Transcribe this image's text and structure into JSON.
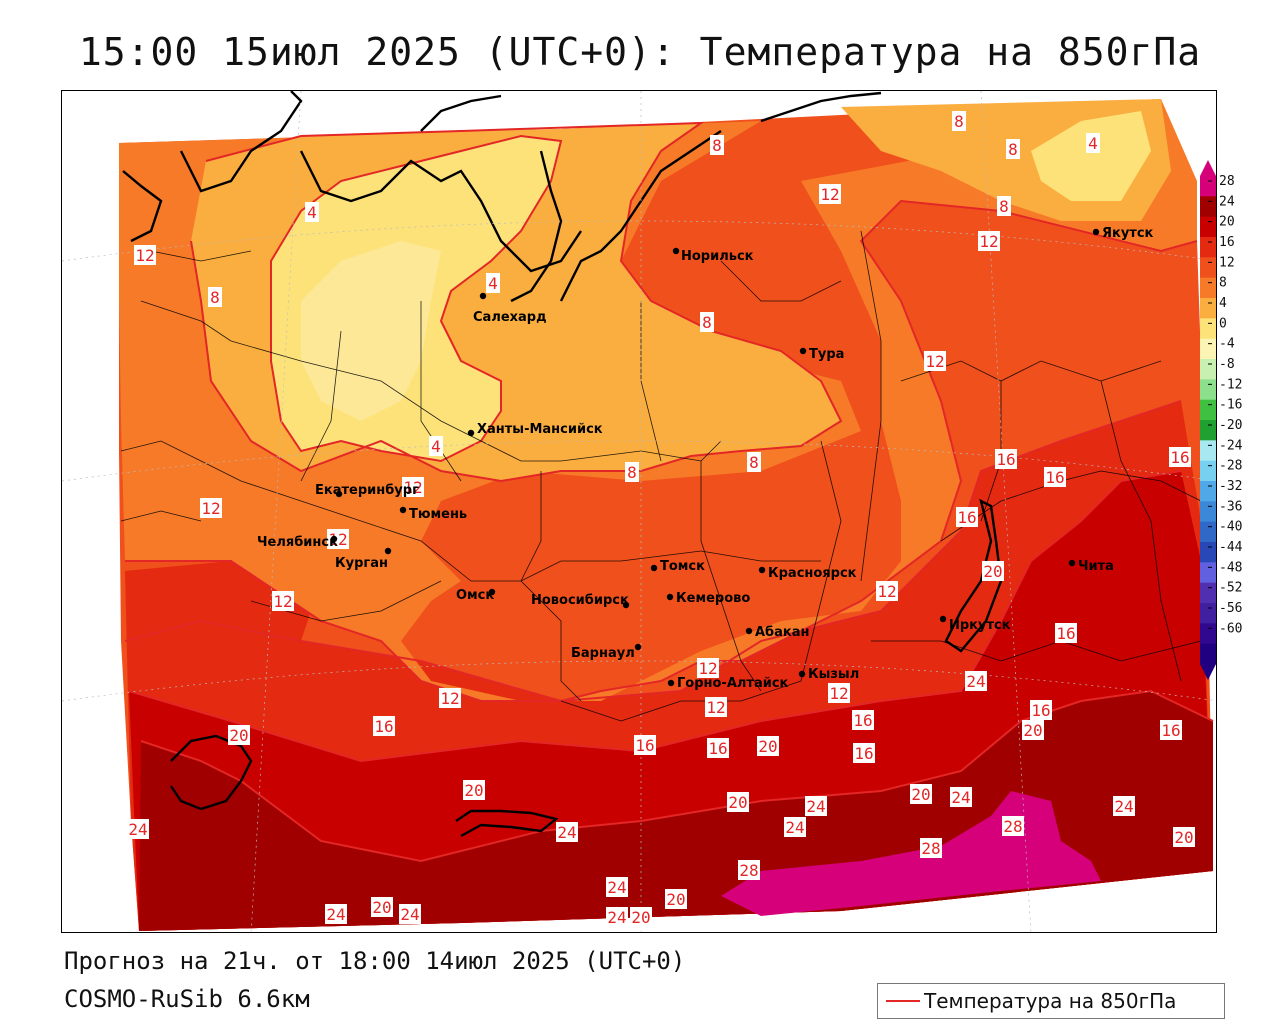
{
  "title": "15:00 15июл 2025 (UTC+0): Температура на 850гПа",
  "footer": {
    "forecast": "Прогноз на 21ч. от 18:00 14июл 2025 (UTC+0)",
    "model": "COSMO-RuSib 6.6км",
    "legend_label": "Температура на 850гПа"
  },
  "colors": {
    "contour_line": "#e32626",
    "city_marker": "#000000"
  },
  "colorbar": {
    "ticks": [
      "28",
      "24",
      "20",
      "16",
      "12",
      "8",
      "4",
      "0",
      "-4",
      "-8",
      "-12",
      "-16",
      "-20",
      "-24",
      "-28",
      "-32",
      "-36",
      "-40",
      "-44",
      "-48",
      "-52",
      "-56",
      "-60"
    ],
    "bins": [
      {
        "color": "#d6007a"
      },
      {
        "color": "#a00000"
      },
      {
        "color": "#c80000"
      },
      {
        "color": "#e42a10"
      },
      {
        "color": "#f0501c"
      },
      {
        "color": "#f67a28"
      },
      {
        "color": "#fbae40"
      },
      {
        "color": "#fde27a"
      },
      {
        "color": "#fbf4b4"
      },
      {
        "color": "#c8f0b0"
      },
      {
        "color": "#8ce08c"
      },
      {
        "color": "#40c040"
      },
      {
        "color": "#20a030"
      },
      {
        "color": "#a8e8f0"
      },
      {
        "color": "#78d0f0"
      },
      {
        "color": "#50a8e8"
      },
      {
        "color": "#3c88d8"
      },
      {
        "color": "#3068c8"
      },
      {
        "color": "#2848b8"
      },
      {
        "color": "#6060e0"
      },
      {
        "color": "#5030b0"
      },
      {
        "color": "#4020a0"
      },
      {
        "color": "#300890"
      },
      {
        "color": "#200080"
      }
    ]
  },
  "cities": [
    {
      "id": "norilsk",
      "name": "Норильск"
    },
    {
      "id": "salekhard",
      "name": "Салехард"
    },
    {
      "id": "tura",
      "name": "Тура"
    },
    {
      "id": "yakutsk",
      "name": "Якутск"
    },
    {
      "id": "khanty",
      "name": "Ханты-Мансийск"
    },
    {
      "id": "ekb",
      "name": "Екатеринбург"
    },
    {
      "id": "tyumen",
      "name": "Тюмень"
    },
    {
      "id": "chelyabinsk",
      "name": "Челябинск"
    },
    {
      "id": "kurgan",
      "name": "Курган"
    },
    {
      "id": "omsk",
      "name": "Омск"
    },
    {
      "id": "novosibirsk",
      "name": "Новосибирск"
    },
    {
      "id": "tomsk",
      "name": "Томск"
    },
    {
      "id": "kemerovo",
      "name": "Кемерово"
    },
    {
      "id": "krasnoyarsk",
      "name": "Красноярск"
    },
    {
      "id": "barnaul",
      "name": "Барнаул"
    },
    {
      "id": "abakan",
      "name": "Абакан"
    },
    {
      "id": "irkutsk",
      "name": "Иркутск"
    },
    {
      "id": "chita",
      "name": "Чита"
    },
    {
      "id": "gorno",
      "name": "Горно-Алтайск"
    },
    {
      "id": "kyzyl",
      "name": "Кызыл"
    }
  ],
  "isotherm_labels": [
    {
      "value": "4"
    },
    {
      "value": "4"
    },
    {
      "value": "4"
    },
    {
      "value": "4"
    },
    {
      "value": "8"
    },
    {
      "value": "8"
    },
    {
      "value": "8"
    },
    {
      "value": "8"
    },
    {
      "value": "8"
    },
    {
      "value": "8"
    },
    {
      "value": "8"
    },
    {
      "value": "8"
    },
    {
      "value": "12"
    },
    {
      "value": "12"
    },
    {
      "value": "12"
    },
    {
      "value": "12"
    },
    {
      "value": "12"
    },
    {
      "value": "12"
    },
    {
      "value": "12"
    },
    {
      "value": "12"
    },
    {
      "value": "12"
    },
    {
      "value": "12"
    },
    {
      "value": "12"
    },
    {
      "value": "12"
    },
    {
      "value": "12"
    },
    {
      "value": "16"
    },
    {
      "value": "16"
    },
    {
      "value": "16"
    },
    {
      "value": "16"
    },
    {
      "value": "16"
    },
    {
      "value": "16"
    },
    {
      "value": "16"
    },
    {
      "value": "16"
    },
    {
      "value": "16"
    },
    {
      "value": "16"
    },
    {
      "value": "16"
    },
    {
      "value": "16"
    },
    {
      "value": "20"
    },
    {
      "value": "20"
    },
    {
      "value": "20"
    },
    {
      "value": "20"
    },
    {
      "value": "20"
    },
    {
      "value": "20"
    },
    {
      "value": "20"
    },
    {
      "value": "20"
    },
    {
      "value": "20"
    },
    {
      "value": "20"
    },
    {
      "value": "20"
    },
    {
      "value": "20"
    },
    {
      "value": "24"
    },
    {
      "value": "24"
    },
    {
      "value": "24"
    },
    {
      "value": "24"
    },
    {
      "value": "24"
    },
    {
      "value": "24"
    },
    {
      "value": "24"
    },
    {
      "value": "24"
    },
    {
      "value": "24"
    },
    {
      "value": "24"
    },
    {
      "value": "24"
    },
    {
      "value": "24"
    },
    {
      "value": "28"
    },
    {
      "value": "28"
    },
    {
      "value": "28"
    }
  ]
}
